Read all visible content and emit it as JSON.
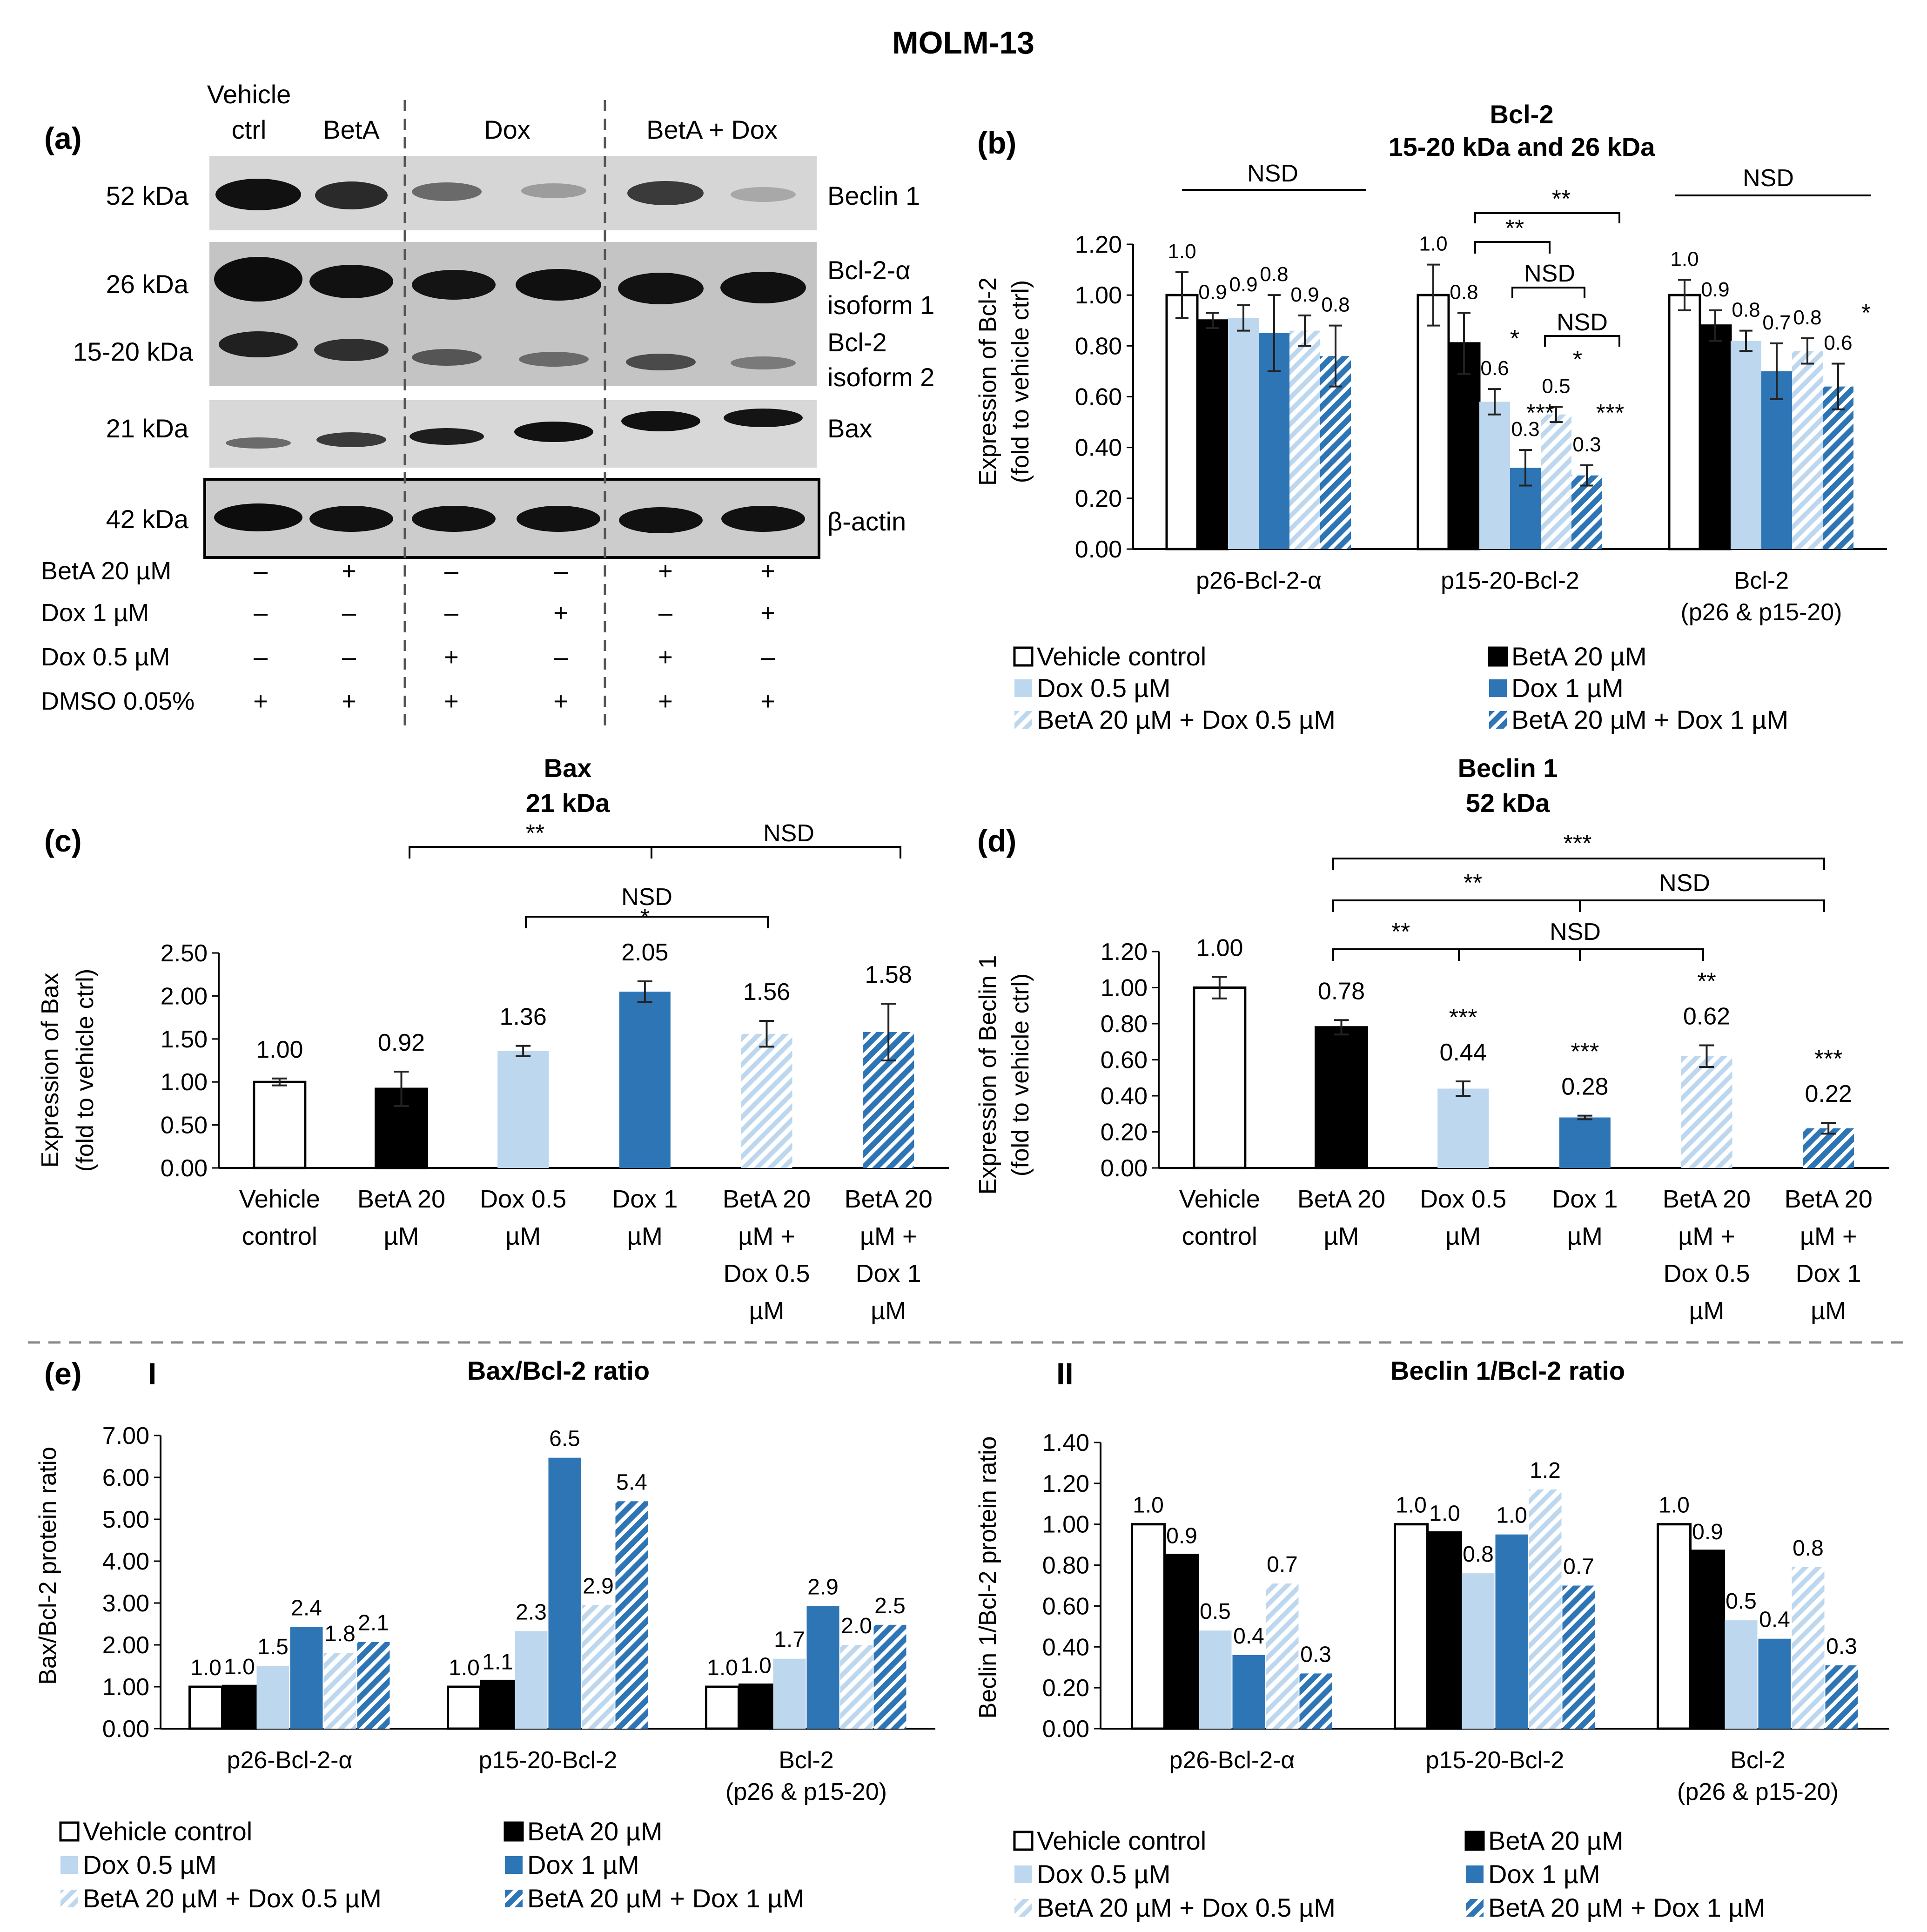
{
  "figure_title": "MOLM-13",
  "colors": {
    "vehicle": "#ffffff",
    "beta": "#000000",
    "dox05": "#bdd7ee",
    "dox1": "#2e75b6",
    "combo05_stripe": "#bdd7ee",
    "combo1_stripe": "#2e75b6",
    "axis": "#000000",
    "gel_bg": "#cfcfcf",
    "band": "#1a1a1a"
  },
  "legend": {
    "items": [
      "Vehicle control",
      "BetA 20 µM",
      "Dox 0.5 µM",
      "Dox 1 µM",
      "BetA 20 µM + Dox 0.5 µM",
      "BetA 20 µM + Dox 1 µM"
    ]
  },
  "blot": {
    "panel_label": "(a)",
    "column_headers": [
      "Vehicle",
      "ctrl",
      "BetA",
      "Dox",
      "BetA  + Dox"
    ],
    "mw_labels": [
      "52 kDa",
      "26 kDa",
      "15-20 kDa",
      "21 kDa",
      "42 kDa"
    ],
    "protein_labels": [
      "Beclin 1",
      "Bcl-2-α",
      "isoform 1",
      "Bcl-2",
      "isoform 2",
      "Bax",
      "β-actin"
    ],
    "treatment_rows": [
      {
        "label": "BetA  20 µM",
        "signs": [
          "–",
          "+",
          "–",
          "–",
          "+",
          "+"
        ]
      },
      {
        "label": "Dox  1 µM",
        "signs": [
          "–",
          "–",
          "–",
          "+",
          "–",
          "+"
        ]
      },
      {
        "label": "Dox  0.5 µM",
        "signs": [
          "–",
          "–",
          "+",
          "–",
          "+",
          "–"
        ]
      },
      {
        "label": "DMSO  0.05%",
        "signs": [
          "+",
          "+",
          "+",
          "+",
          "+",
          "+"
        ]
      }
    ]
  },
  "panels": {
    "b": {
      "label": "(b)",
      "title": "Bcl-2",
      "subtitle": "15-20 kDa and 26 kDa",
      "ylabel": "Expression of Bcl-2",
      "ylabel2": "(fold to vehicle ctrl)"
    },
    "c": {
      "label": "(c)",
      "title": "Bax",
      "subtitle": "21 kDa",
      "ylabel": "Expression of Bax",
      "ylabel2": "(fold to vehicle ctrl)"
    },
    "d": {
      "label": "(d)",
      "title": "Beclin 1",
      "subtitle": "52 kDa",
      "ylabel": "Expression of Beclin 1",
      "ylabel2": "(fold to vehicle ctrl)"
    },
    "e": {
      "label": "(e)",
      "sub1": "I",
      "sub2": "II",
      "title1": "Bax/Bcl-2 ratio",
      "title2": "Beclin 1/Bcl-2 ratio",
      "ylabel1": "Bax/Bcl-2 protein ratio",
      "ylabel2": "Beclin 1/Bcl-2 protein ratio"
    }
  },
  "chart_data": [
    {
      "id": "b",
      "type": "bar",
      "title": "Bcl-2 15-20 kDa and 26 kDa",
      "ylabel": "Expression of Bcl-2 (fold to vehicle ctrl)",
      "ylim": [
        0,
        1.2
      ],
      "yticks": [
        "0.00",
        "0.20",
        "0.40",
        "0.60",
        "0.80",
        "1.00",
        "1.20"
      ],
      "group_labels": [
        [
          "p26-Bcl-2-α"
        ],
        [
          "p15-20-Bcl-2"
        ],
        [
          "Bcl-2",
          "(p26 & p15-20)"
        ]
      ],
      "series": [
        {
          "name": "Vehicle control",
          "values": [
            1.0,
            1.0,
            1.0
          ],
          "errors": [
            0.09,
            0.12,
            0.06
          ],
          "labels": [
            "1.0",
            "1.0",
            "1.0"
          ]
        },
        {
          "name": "BetA 20 µM",
          "values": [
            0.9,
            0.81,
            0.88
          ],
          "errors": [
            0.03,
            0.12,
            0.06
          ],
          "labels": [
            "0.9",
            "0.8",
            "0.9"
          ]
        },
        {
          "name": "Dox 0.5 µM",
          "values": [
            0.91,
            0.58,
            0.82
          ],
          "errors": [
            0.05,
            0.05,
            0.04
          ],
          "labels": [
            "0.9",
            "0.6",
            "0.8"
          ]
        },
        {
          "name": "Dox 1 µM",
          "values": [
            0.85,
            0.32,
            0.7
          ],
          "errors": [
            0.15,
            0.07,
            0.11
          ],
          "labels": [
            "0.8",
            "0.3",
            "0.7"
          ]
        },
        {
          "name": "BetA 20 µM + Dox 0.5 µM",
          "values": [
            0.86,
            0.53,
            0.78
          ],
          "errors": [
            0.06,
            0.03,
            0.05
          ],
          "labels": [
            "0.9",
            "0.5",
            "0.8"
          ]
        },
        {
          "name": "BetA 20 µM + Dox 1 µM",
          "values": [
            0.76,
            0.29,
            0.64
          ],
          "errors": [
            0.12,
            0.04,
            0.09
          ],
          "labels": [
            "0.8",
            "0.3",
            "0.6"
          ]
        }
      ],
      "significance": [
        "NSD",
        "**",
        "**",
        "NSD",
        "NSD",
        "*",
        "*",
        "***",
        "***",
        "NSD",
        "*"
      ]
    },
    {
      "id": "c",
      "type": "bar",
      "title": "Bax 21 kDa",
      "ylabel": "Expression of Bax (fold to vehicle ctrl)",
      "ylim": [
        0,
        2.5
      ],
      "yticks": [
        "0.00",
        "0.50",
        "1.00",
        "1.50",
        "2.00",
        "2.50"
      ],
      "categories": [
        [
          "Vehicle",
          "control"
        ],
        [
          "BetA 20",
          "µM"
        ],
        [
          "Dox 0.5",
          "µM"
        ],
        [
          "Dox 1",
          "µM"
        ],
        [
          "BetA 20",
          "µM +",
          "Dox 0.5",
          "µM"
        ],
        [
          "BetA 20",
          "µM +",
          "Dox 1",
          "µM"
        ]
      ],
      "values": [
        1.0,
        0.92,
        1.36,
        2.05,
        1.56,
        1.58
      ],
      "errors": [
        0.04,
        0.2,
        0.06,
        0.12,
        0.15,
        0.33
      ],
      "value_labels": [
        "1.00",
        "0.92",
        "1.36",
        "2.05",
        "1.56",
        "1.58"
      ],
      "stars": [
        "",
        "",
        "",
        "*",
        "",
        ""
      ],
      "significance": [
        "**",
        "NSD",
        "NSD"
      ]
    },
    {
      "id": "d",
      "type": "bar",
      "title": "Beclin 1 52 kDa",
      "ylabel": "Expression of Beclin 1 (fold to vehicle ctrl)",
      "ylim": [
        0,
        1.2
      ],
      "yticks": [
        "0.00",
        "0.20",
        "0.40",
        "0.60",
        "0.80",
        "1.00",
        "1.20"
      ],
      "categories": [
        [
          "Vehicle",
          "control"
        ],
        [
          "BetA 20",
          "µM"
        ],
        [
          "Dox 0.5",
          "µM"
        ],
        [
          "Dox 1",
          "µM"
        ],
        [
          "BetA 20",
          "µM +",
          "Dox 0.5",
          "µM"
        ],
        [
          "BetA 20",
          "µM +",
          "Dox 1",
          "µM"
        ]
      ],
      "values": [
        1.0,
        0.78,
        0.44,
        0.28,
        0.62,
        0.22
      ],
      "errors": [
        0.06,
        0.04,
        0.04,
        0.01,
        0.06,
        0.03
      ],
      "value_labels": [
        "1.00",
        "0.78",
        "0.44",
        "0.28",
        "0.62",
        "0.22"
      ],
      "stars": [
        "",
        "",
        "***",
        "***",
        "**",
        "***"
      ],
      "significance": [
        "***",
        "**",
        "NSD",
        "**",
        "NSD"
      ]
    },
    {
      "id": "e1",
      "type": "bar",
      "title": "Bax/Bcl-2 ratio",
      "ylabel": "Bax/Bcl-2 protein ratio",
      "ylim": [
        0,
        7
      ],
      "yticks": [
        "0.00",
        "1.00",
        "2.00",
        "3.00",
        "4.00",
        "5.00",
        "6.00",
        "7.00"
      ],
      "group_labels": [
        [
          "p26-Bcl-2-α"
        ],
        [
          "p15-20-Bcl-2"
        ],
        [
          "Bcl-2",
          "(p26 & p15-20)"
        ]
      ],
      "series": [
        {
          "name": "Vehicle control",
          "values": [
            1.0,
            1.0,
            1.0
          ],
          "labels": [
            "1.0",
            "1.0",
            "1.0"
          ]
        },
        {
          "name": "BetA 20 µM",
          "values": [
            1.02,
            1.14,
            1.05
          ],
          "labels": [
            "1.0",
            "1.1",
            "1.0"
          ]
        },
        {
          "name": "Dox 0.5 µM",
          "values": [
            1.5,
            2.33,
            1.67
          ],
          "labels": [
            "1.5",
            "2.3",
            "1.7"
          ]
        },
        {
          "name": "Dox 1 µM",
          "values": [
            2.43,
            6.47,
            2.93
          ],
          "labels": [
            "2.4",
            "6.5",
            "2.9"
          ]
        },
        {
          "name": "BetA 20 µM + Dox 0.5 µM",
          "values": [
            1.81,
            2.95,
            2.0
          ],
          "labels": [
            "1.8",
            "2.9",
            "2.0"
          ]
        },
        {
          "name": "BetA 20 µM + Dox 1 µM",
          "values": [
            2.07,
            5.43,
            2.48
          ],
          "labels": [
            "2.1",
            "5.4",
            "2.5"
          ]
        }
      ]
    },
    {
      "id": "e2",
      "type": "bar",
      "title": "Beclin 1/Bcl-2 ratio",
      "ylabel": "Beclin 1/Bcl-2 protein ratio",
      "ylim": [
        0,
        1.4
      ],
      "yticks": [
        "0.00",
        "0.20",
        "0.40",
        "0.60",
        "0.80",
        "1.00",
        "1.20",
        "1.40"
      ],
      "group_labels": [
        [
          "p26-Bcl-2-α"
        ],
        [
          "p15-20-Bcl-2"
        ],
        [
          "Bcl-2",
          "(p26 & p15-20)"
        ]
      ],
      "series": [
        {
          "name": "Vehicle control",
          "values": [
            1.0,
            1.0,
            1.0
          ],
          "labels": [
            "1.0",
            "1.0",
            "1.0"
          ]
        },
        {
          "name": "BetA 20 µM",
          "values": [
            0.85,
            0.96,
            0.87
          ],
          "labels": [
            "0.9",
            "1.0",
            "0.9"
          ]
        },
        {
          "name": "Dox 0.5 µM",
          "values": [
            0.48,
            0.76,
            0.53
          ],
          "labels": [
            "0.5",
            "0.8",
            "0.5"
          ]
        },
        {
          "name": "Dox 1 µM",
          "values": [
            0.36,
            0.95,
            0.44
          ],
          "labels": [
            "0.4",
            "1.0",
            "0.4"
          ]
        },
        {
          "name": "BetA 20 µM + Dox 0.5 µM",
          "values": [
            0.71,
            1.17,
            0.79
          ],
          "labels": [
            "0.7",
            "1.2",
            "0.8"
          ]
        },
        {
          "name": "BetA 20 µM + Dox 1 µM",
          "values": [
            0.27,
            0.7,
            0.31
          ],
          "labels": [
            "0.3",
            "0.7",
            "0.3"
          ]
        }
      ]
    }
  ]
}
